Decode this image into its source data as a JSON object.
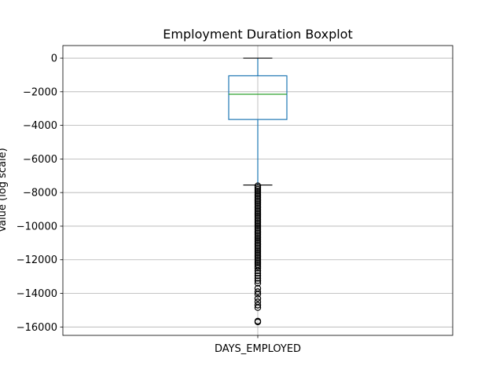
{
  "chart_data": {
    "type": "boxplot",
    "title": "Employment Duration Boxplot",
    "xlabel": "",
    "ylabel": "Value (log scale)",
    "categories": [
      "DAYS_EMPLOYED"
    ],
    "ylim": [
      -16500,
      750
    ],
    "yticks": [
      0,
      -2000,
      -4000,
      -6000,
      -8000,
      -10000,
      -12000,
      -14000,
      -16000
    ],
    "ytick_labels": [
      "0",
      "−2000",
      "−4000",
      "−6000",
      "−8000",
      "−10000",
      "−12000",
      "−14000",
      "−16000"
    ],
    "grid": true,
    "box": {
      "whisker_high": 0,
      "q3": -1050,
      "median": -2150,
      "q1": -3650,
      "whisker_low": -7550
    },
    "outliers": [
      -7600,
      -7700,
      -7800,
      -7900,
      -8000,
      -8100,
      -8200,
      -8300,
      -8400,
      -8500,
      -8600,
      -8700,
      -8800,
      -8900,
      -9000,
      -9100,
      -9200,
      -9300,
      -9400,
      -9500,
      -9600,
      -9700,
      -9800,
      -9900,
      -10000,
      -10100,
      -10200,
      -10300,
      -10400,
      -10500,
      -10600,
      -10700,
      -10800,
      -10900,
      -11000,
      -11100,
      -11200,
      -11300,
      -11400,
      -11500,
      -11600,
      -11700,
      -11800,
      -11900,
      -12000,
      -12100,
      -12200,
      -12300,
      -12400,
      -12500,
      -12650,
      -12800,
      -12950,
      -13100,
      -13250,
      -13400,
      -13700,
      -13900,
      -14050,
      -14300,
      -14500,
      -14700,
      -14850,
      -15650,
      -15700
    ],
    "colors": {
      "box": "#1f77b4",
      "median": "#2ca02c",
      "whisker_cap": "#000000",
      "outlier": "#000000",
      "grid": "#b0b0b0"
    }
  }
}
